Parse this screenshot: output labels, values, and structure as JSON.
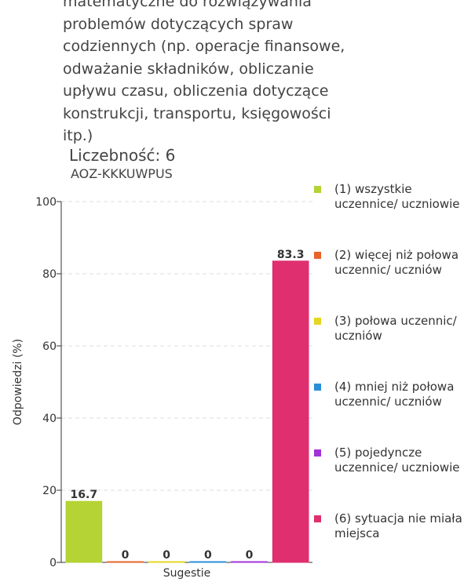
{
  "description_lines": [
    "matematyczne do rozwiązywania",
    "problemów dotyczących spraw",
    "codziennych (np. operacje finansowe,",
    "odważanie składników, obliczanie",
    "upływu czasu, obliczenia dotyczące",
    "konstrukcji, transportu, księgowości",
    "itp.)"
  ],
  "count_label": "Liczebność: 6",
  "code": "AOZ-KKKUWPUS",
  "chart_data": {
    "type": "bar",
    "x_label": "Sugestie",
    "y_label": "Odpowiedzi (%)",
    "ylim": [
      0,
      100
    ],
    "yticks": [
      0,
      20,
      40,
      60,
      80,
      100
    ],
    "grid": true,
    "legend": "right",
    "series": [
      {
        "name": "(1) wszystkie uczennice/ uczniowie",
        "color": "#b5d334",
        "values": [
          16.7
        ]
      },
      {
        "name": "(2) więcej niż połowa uczennic/ uczniów",
        "color": "#e8642a",
        "values": [
          0
        ]
      },
      {
        "name": "(3) połowa uczennic/ uczniów",
        "color": "#e6d622",
        "values": [
          0
        ]
      },
      {
        "name": "(4) mniej niż połowa uczennic/ uczniów",
        "color": "#2a8fd8",
        "values": [
          0
        ]
      },
      {
        "name": "(5) pojedyncze uczennice/ uczniowie",
        "color": "#a232d8",
        "values": [
          0
        ]
      },
      {
        "name": "(6) sytuacja nie miała miejsca",
        "color": "#df2f6e",
        "values": [
          83.3
        ]
      }
    ]
  }
}
